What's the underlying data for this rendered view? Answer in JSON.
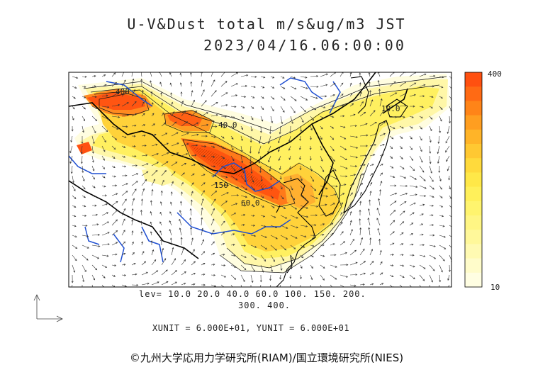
{
  "title": {
    "line1": "U-V&Dust total m/s&ug/m3 JST",
    "line2": "2023/04/16.06:00:00"
  },
  "levels": {
    "line1": "lev= 10.0 20.0 40.0 60.0 100. 150. 200.",
    "line2": "300. 400."
  },
  "units_text": "XUNIT = 6.000E+01, YUNIT = 6.000E+01",
  "colorbar": {
    "max_label": "400",
    "min_label": "10",
    "colors": [
      "#ff5010",
      "#ff6a14",
      "#ff8418",
      "#ff9e20",
      "#ffb428",
      "#ffc832",
      "#ffda3c",
      "#ffe848",
      "#fff05a",
      "#fff46e",
      "#fff684",
      "#fff89a",
      "#fffab2",
      "#fffcca",
      "#fffee2"
    ]
  },
  "map_labels": [
    {
      "text": "400"
    },
    {
      "text": "40.0"
    },
    {
      "text": "150"
    },
    {
      "text": "60.0"
    },
    {
      "text": "10.0"
    }
  ],
  "credit": "©九州大学応用力学研究所(RIAM)/国立環境研究所(NIES)"
}
